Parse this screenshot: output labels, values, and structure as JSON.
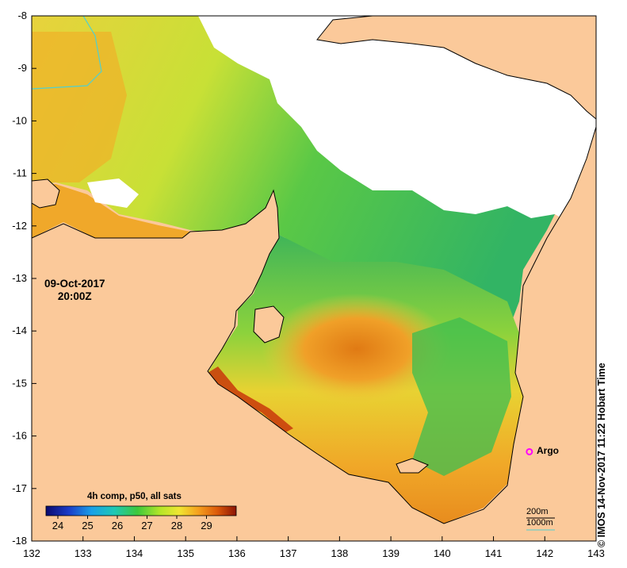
{
  "map": {
    "date_line1": "09-Oct-2017",
    "date_line2": "20:00Z",
    "credit": "© IMOS 14-Nov-2017 11:22 Hobart Time",
    "x_ticks": [
      "132",
      "133",
      "134",
      "135",
      "136",
      "137",
      "138",
      "139",
      "140",
      "141",
      "142",
      "143"
    ],
    "y_ticks": [
      "-8",
      "-9",
      "-10",
      "-11",
      "-12",
      "-13",
      "-14",
      "-15",
      "-16",
      "-17",
      "-18"
    ],
    "x_range": [
      132,
      143
    ],
    "y_range": [
      -18,
      -8
    ],
    "colorbar": {
      "title": "4h comp, p50, all sats",
      "ticks": [
        "24",
        "25",
        "26",
        "27",
        "28",
        "29"
      ],
      "range": [
        23.6,
        30.0
      ]
    },
    "depth_legend": {
      "line1": "200m",
      "line2": "1000m"
    },
    "argo": {
      "label": "Argo",
      "lon": 141.7,
      "lat": -16.3
    },
    "colors": {
      "land": "#fbc99a",
      "cloud": "#ffffff",
      "argo": "#ff00ff",
      "contour_200m": "#4fd0d0"
    }
  }
}
